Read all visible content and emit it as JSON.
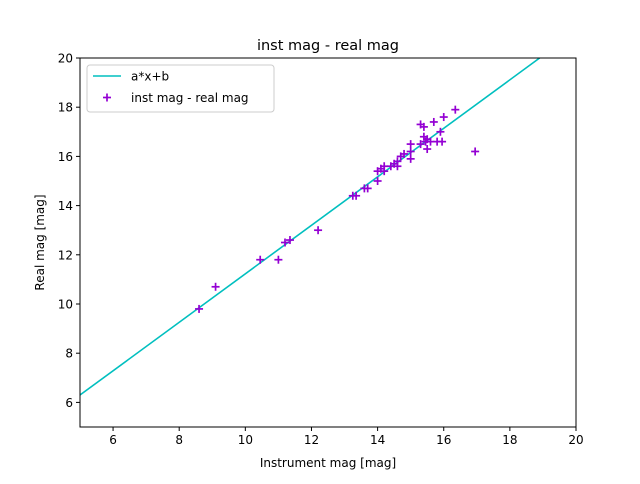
{
  "chart_data": {
    "type": "scatter",
    "title": "inst mag - real mag",
    "xlabel": "Instrument mag [mag]",
    "ylabel": "Real mag [mag]",
    "xlim": [
      5,
      20
    ],
    "ylim": [
      5,
      20
    ],
    "xticks": [
      6,
      8,
      10,
      12,
      14,
      16,
      18,
      20
    ],
    "yticks": [
      6,
      8,
      10,
      12,
      14,
      16,
      18,
      20
    ],
    "grid": false,
    "legend": "top-left",
    "fit_line": {
      "name": "a*x+b",
      "color": "#00bfbf",
      "points": [
        [
          5,
          6.3
        ],
        [
          18.9,
          20
        ]
      ]
    },
    "series": [
      {
        "name": "inst mag - real mag",
        "color": "#9400d3",
        "marker": "plus",
        "points": [
          [
            8.6,
            9.8
          ],
          [
            9.1,
            10.7
          ],
          [
            10.45,
            11.8
          ],
          [
            11.0,
            11.8
          ],
          [
            11.2,
            12.5
          ],
          [
            11.35,
            12.6
          ],
          [
            12.2,
            13.0
          ],
          [
            13.25,
            14.4
          ],
          [
            13.35,
            14.4
          ],
          [
            13.6,
            14.7
          ],
          [
            13.7,
            14.7
          ],
          [
            14.0,
            15.0
          ],
          [
            14.0,
            15.4
          ],
          [
            14.1,
            15.5
          ],
          [
            14.2,
            15.4
          ],
          [
            14.2,
            15.6
          ],
          [
            14.4,
            15.6
          ],
          [
            14.5,
            15.7
          ],
          [
            14.6,
            15.6
          ],
          [
            14.6,
            15.8
          ],
          [
            14.7,
            16.0
          ],
          [
            14.8,
            16.1
          ],
          [
            15.0,
            15.9
          ],
          [
            15.0,
            16.2
          ],
          [
            15.0,
            16.5
          ],
          [
            15.3,
            17.3
          ],
          [
            15.3,
            16.5
          ],
          [
            15.4,
            17.2
          ],
          [
            15.4,
            16.8
          ],
          [
            15.45,
            16.6
          ],
          [
            15.5,
            16.3
          ],
          [
            15.5,
            16.7
          ],
          [
            15.6,
            16.6
          ],
          [
            15.7,
            17.4
          ],
          [
            15.8,
            16.6
          ],
          [
            15.9,
            17.0
          ],
          [
            15.95,
            16.6
          ],
          [
            16.0,
            17.6
          ],
          [
            16.35,
            17.9
          ],
          [
            16.95,
            16.2
          ]
        ]
      }
    ]
  }
}
